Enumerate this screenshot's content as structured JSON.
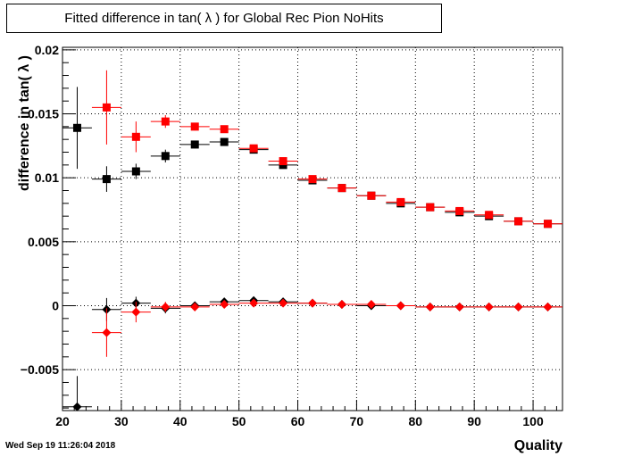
{
  "timestamp": "Wed Sep 19 11:26:04 2018",
  "chart_data": {
    "type": "scatter",
    "title": "Fitted difference in tan( λ ) for Global Rec Pion NoHits",
    "xlabel": "Quality",
    "ylabel": "difference in tan( λ )",
    "xlim": [
      20,
      105
    ],
    "ylim": [
      -0.0082,
      0.0202
    ],
    "grid": true,
    "xticks": [
      20,
      30,
      40,
      50,
      60,
      70,
      80,
      90,
      100
    ],
    "yticks": [
      -0.005,
      0,
      0.005,
      0.01,
      0.015,
      0.02
    ],
    "ytick_labels": [
      "−0.005",
      "0",
      "0.005",
      "0.01",
      "0.015",
      "0.02"
    ],
    "series": [
      {
        "color": "#000000",
        "marker": "square",
        "points": [
          {
            "x": 22.5,
            "y": 0.0139,
            "yerr": 0.0032
          },
          {
            "x": 27.5,
            "y": 0.0099,
            "yerr": 0.001
          },
          {
            "x": 32.5,
            "y": 0.0105,
            "yerr": 0.0006
          },
          {
            "x": 37.5,
            "y": 0.0117,
            "yerr": 0.0005
          },
          {
            "x": 42.5,
            "y": 0.0126,
            "yerr": 0.0003
          },
          {
            "x": 47.5,
            "y": 0.0128,
            "yerr": 0.0002
          },
          {
            "x": 52.5,
            "y": 0.0122,
            "yerr": 0.0002
          },
          {
            "x": 57.5,
            "y": 0.011,
            "yerr": 0.0002
          },
          {
            "x": 62.5,
            "y": 0.0098,
            "yerr": 0.0002
          },
          {
            "x": 67.5,
            "y": 0.0092,
            "yerr": 0.0002
          },
          {
            "x": 72.5,
            "y": 0.0086,
            "yerr": 0.0002
          },
          {
            "x": 77.5,
            "y": 0.008,
            "yerr": 0.0002
          },
          {
            "x": 82.5,
            "y": 0.0077,
            "yerr": 0.0001
          },
          {
            "x": 87.5,
            "y": 0.0073,
            "yerr": 0.0001
          },
          {
            "x": 92.5,
            "y": 0.007,
            "yerr": 0.0001
          },
          {
            "x": 97.5,
            "y": 0.0066,
            "yerr": 0.0001
          },
          {
            "x": 102.5,
            "y": 0.0064,
            "yerr": 0.0001
          }
        ]
      },
      {
        "color": "#ff0000",
        "marker": "square",
        "points": [
          {
            "x": 27.5,
            "y": 0.0155,
            "yerr": 0.0029
          },
          {
            "x": 32.5,
            "y": 0.0132,
            "yerr": 0.0012
          },
          {
            "x": 37.5,
            "y": 0.0144,
            "yerr": 0.0005
          },
          {
            "x": 42.5,
            "y": 0.014,
            "yerr": 0.0003
          },
          {
            "x": 47.5,
            "y": 0.0138,
            "yerr": 0.0002
          },
          {
            "x": 52.5,
            "y": 0.0123,
            "yerr": 0.0002
          },
          {
            "x": 57.5,
            "y": 0.0113,
            "yerr": 0.0002
          },
          {
            "x": 62.5,
            "y": 0.0099,
            "yerr": 0.0002
          },
          {
            "x": 67.5,
            "y": 0.0092,
            "yerr": 0.0002
          },
          {
            "x": 72.5,
            "y": 0.0086,
            "yerr": 0.0002
          },
          {
            "x": 77.5,
            "y": 0.0081,
            "yerr": 0.0002
          },
          {
            "x": 82.5,
            "y": 0.0077,
            "yerr": 0.0001
          },
          {
            "x": 87.5,
            "y": 0.0074,
            "yerr": 0.0001
          },
          {
            "x": 92.5,
            "y": 0.0071,
            "yerr": 0.0001
          },
          {
            "x": 97.5,
            "y": 0.0066,
            "yerr": 0.0001
          },
          {
            "x": 102.5,
            "y": 0.0064,
            "yerr": 0.0001
          }
        ]
      },
      {
        "color": "#000000",
        "marker": "diamond",
        "points": [
          {
            "x": 22.5,
            "y": -0.0079,
            "yerr": 0.0024
          },
          {
            "x": 27.5,
            "y": -0.0003,
            "yerr": 0.0009
          },
          {
            "x": 32.5,
            "y": 0.0002,
            "yerr": 0.0005
          },
          {
            "x": 37.5,
            "y": -0.0002,
            "yerr": 0.0004
          },
          {
            "x": 42.5,
            "y": 0.0,
            "yerr": 0.0003
          },
          {
            "x": 47.5,
            "y": 0.0003,
            "yerr": 0.0002
          },
          {
            "x": 52.5,
            "y": 0.0004,
            "yerr": 0.0002
          },
          {
            "x": 57.5,
            "y": 0.0003,
            "yerr": 0.0002
          },
          {
            "x": 62.5,
            "y": 0.0002,
            "yerr": 0.0001
          },
          {
            "x": 67.5,
            "y": 0.0001,
            "yerr": 0.0001
          },
          {
            "x": 72.5,
            "y": 0.0,
            "yerr": 0.0001
          },
          {
            "x": 77.5,
            "y": 0.0,
            "yerr": 0.0001
          },
          {
            "x": 82.5,
            "y": -0.0001,
            "yerr": 0.0001
          },
          {
            "x": 87.5,
            "y": -0.0001,
            "yerr": 0.0001
          },
          {
            "x": 92.5,
            "y": -0.0001,
            "yerr": 0.0001
          },
          {
            "x": 97.5,
            "y": -0.0001,
            "yerr": 0.0001
          },
          {
            "x": 102.5,
            "y": -0.0001,
            "yerr": 0.0001
          }
        ]
      },
      {
        "color": "#ff0000",
        "marker": "diamond",
        "points": [
          {
            "x": 27.5,
            "y": -0.0021,
            "yerr": 0.0019
          },
          {
            "x": 32.5,
            "y": -0.0005,
            "yerr": 0.0008
          },
          {
            "x": 37.5,
            "y": -0.0001,
            "yerr": 0.0004
          },
          {
            "x": 42.5,
            "y": -0.0001,
            "yerr": 0.0003
          },
          {
            "x": 47.5,
            "y": 0.0001,
            "yerr": 0.0002
          },
          {
            "x": 52.5,
            "y": 0.0002,
            "yerr": 0.0002
          },
          {
            "x": 57.5,
            "y": 0.0002,
            "yerr": 0.0002
          },
          {
            "x": 62.5,
            "y": 0.0002,
            "yerr": 0.0001
          },
          {
            "x": 67.5,
            "y": 0.0001,
            "yerr": 0.0001
          },
          {
            "x": 72.5,
            "y": 0.0001,
            "yerr": 0.0001
          },
          {
            "x": 77.5,
            "y": 0.0,
            "yerr": 0.0001
          },
          {
            "x": 82.5,
            "y": -0.0001,
            "yerr": 0.0001
          },
          {
            "x": 87.5,
            "y": -0.0001,
            "yerr": 0.0001
          },
          {
            "x": 92.5,
            "y": -0.0001,
            "yerr": 0.0001
          },
          {
            "x": 97.5,
            "y": -0.0001,
            "yerr": 0.0001
          },
          {
            "x": 102.5,
            "y": -0.0001,
            "yerr": 0.0001
          }
        ]
      }
    ]
  }
}
